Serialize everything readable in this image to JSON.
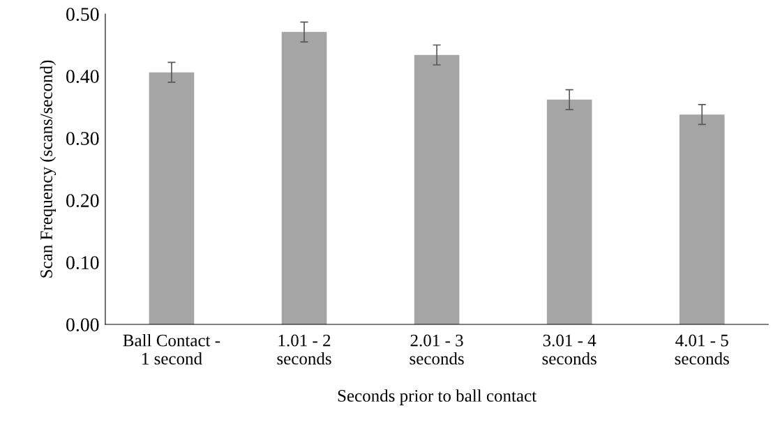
{
  "chart_data": {
    "type": "bar",
    "categories": [
      "Ball Contact -\n1 second",
      "1.01 - 2\nseconds",
      "2.01 - 3\nseconds",
      "3.01 - 4\nseconds",
      "4.01 - 5\nseconds"
    ],
    "values": [
      0.406,
      0.471,
      0.434,
      0.362,
      0.338
    ],
    "errors": [
      0.016,
      0.016,
      0.016,
      0.016,
      0.016
    ],
    "color": "#a5a5a5",
    "xlabel": "Seconds prior to ball contact",
    "ylabel": "Scan Frequency (scans/second)",
    "ylim": [
      0,
      0.5
    ],
    "yticks": [
      {
        "value": 0,
        "label": "0.00"
      },
      {
        "value": 0.1,
        "label": "0.10"
      },
      {
        "value": 0.2,
        "label": "0.20"
      },
      {
        "value": 0.3,
        "label": "0.30"
      },
      {
        "value": 0.4,
        "label": "0.40"
      },
      {
        "value": 0.5,
        "label": "0.50"
      }
    ],
    "grid": false,
    "legend": false
  }
}
